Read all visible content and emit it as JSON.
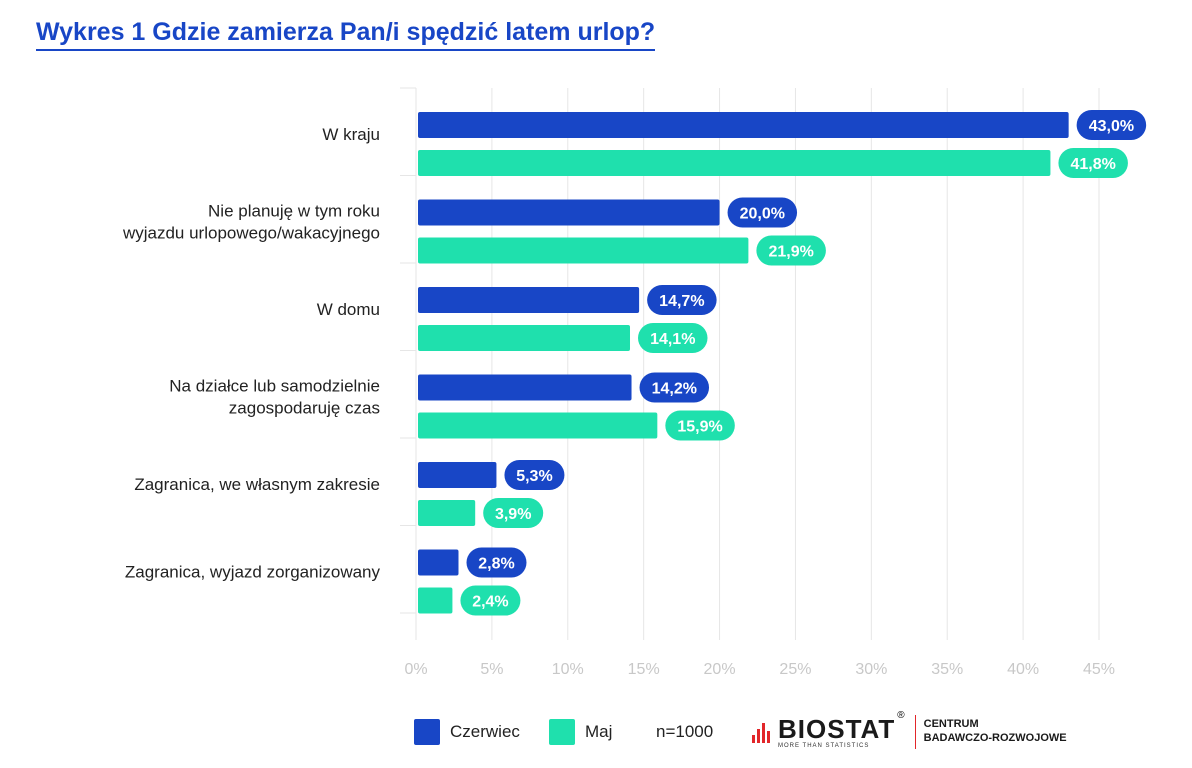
{
  "title": "Wykres 1 Gdzie zamierza Pan/i spędzić latem urlop?",
  "colors": {
    "series1": "#1846c6",
    "series2": "#1fe0ad",
    "title": "#1846c6",
    "grid": "#e6e6e6",
    "tick": "#c8c8c8"
  },
  "chart_data": {
    "type": "bar",
    "orientation": "horizontal",
    "categories": [
      [
        "W kraju"
      ],
      [
        "Nie planuję w tym roku",
        "wyjazdu urlopowego/wakacyjnego"
      ],
      [
        "W domu"
      ],
      [
        "Na działce lub samodzielnie",
        "zagospodaruję czas"
      ],
      [
        "Zagranica, we własnym zakresie"
      ],
      [
        "Zagranica, wyjazd zorganizowany"
      ]
    ],
    "series": [
      {
        "name": "Czerwiec",
        "values": [
          43.0,
          20.0,
          14.7,
          14.2,
          5.3,
          2.8
        ],
        "labels": [
          "43,0%",
          "20,0%",
          "14,7%",
          "14,2%",
          "5,3%",
          "2,8%"
        ]
      },
      {
        "name": "Maj",
        "values": [
          41.8,
          21.9,
          14.1,
          15.9,
          3.9,
          2.4
        ],
        "labels": [
          "41,8%",
          "21,9%",
          "14,1%",
          "15,9%",
          "3,9%",
          "2,4%"
        ]
      }
    ],
    "xlim": [
      0,
      45
    ],
    "xticks": [
      0,
      5,
      10,
      15,
      20,
      25,
      30,
      35,
      40,
      45
    ],
    "xtick_labels": [
      "0%",
      "5%",
      "10%",
      "15%",
      "20%",
      "25%",
      "30%",
      "35%",
      "40%",
      "45%"
    ],
    "grid": true,
    "legend_position": "bottom"
  },
  "legend": {
    "series1": "Czerwiec",
    "series2": "Maj",
    "sample": "n=1000"
  },
  "logo": {
    "brand": "BIOSTAT",
    "tagline": "MORE THAN STATISTICS",
    "registered": "®",
    "centre_line1": "CENTRUM",
    "centre_line2": "BADAWCZO-ROZWOJOWE"
  }
}
